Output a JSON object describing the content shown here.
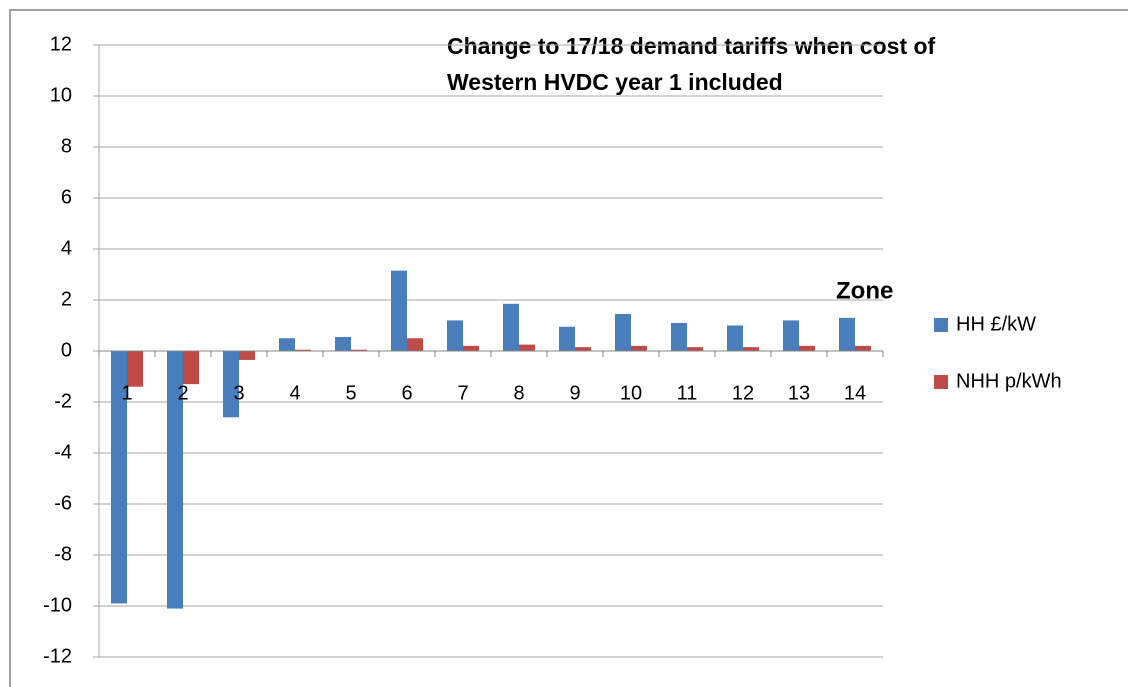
{
  "chart_data": {
    "type": "bar",
    "title": [
      "Change to 17/18 demand tariffs when cost of",
      "Western HVDC year 1 included"
    ],
    "x_label": "Zone",
    "categories": [
      "1",
      "2",
      "3",
      "4",
      "5",
      "6",
      "7",
      "8",
      "9",
      "10",
      "11",
      "12",
      "13",
      "14"
    ],
    "series": [
      {
        "name": "HH £/kW",
        "color": "#4a7ebb",
        "values": [
          -9.9,
          -10.1,
          -2.6,
          0.5,
          0.55,
          3.15,
          1.2,
          1.85,
          0.95,
          1.45,
          1.1,
          1.0,
          1.2,
          1.3
        ]
      },
      {
        "name": "NHH p/kWh",
        "color": "#be4b48",
        "values": [
          -1.4,
          -1.3,
          -0.35,
          0.05,
          0.05,
          0.5,
          0.2,
          0.25,
          0.15,
          0.2,
          0.15,
          0.15,
          0.2,
          0.2
        ]
      }
    ],
    "ylim": [
      -12,
      12
    ],
    "yticks": [
      -12,
      -10,
      -8,
      -6,
      -4,
      -2,
      0,
      2,
      4,
      6,
      8,
      10,
      12
    ],
    "grid": true,
    "legend": "right"
  }
}
